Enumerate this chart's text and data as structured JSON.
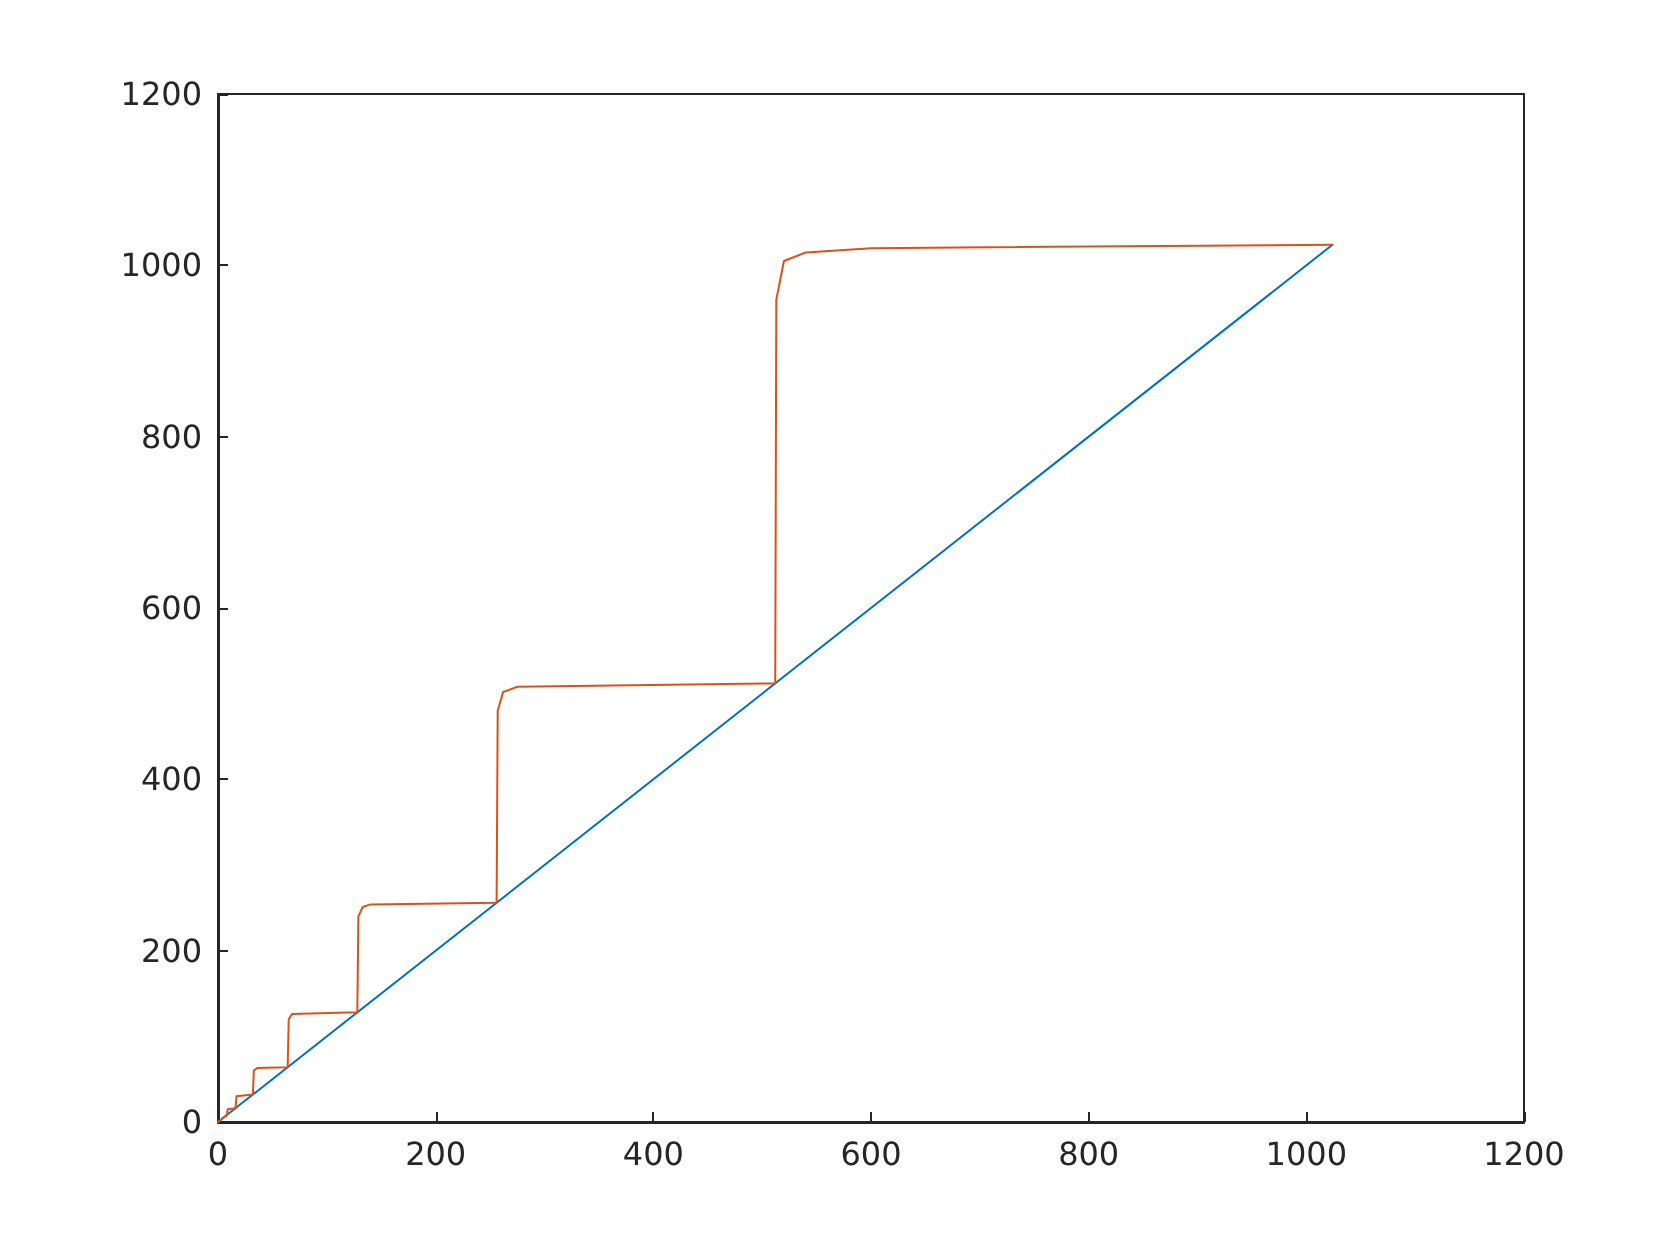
{
  "chart_data": {
    "type": "line",
    "xlim": [
      0,
      1200
    ],
    "ylim": [
      0,
      1200
    ],
    "xticks": [
      0,
      200,
      400,
      600,
      800,
      1000,
      1200
    ],
    "yticks": [
      0,
      200,
      400,
      600,
      800,
      1000,
      1200
    ],
    "grid": false,
    "marker": "none",
    "line_style": "solid",
    "series": [
      {
        "color": "#0072bd",
        "x": [
          0,
          1024
        ],
        "values": [
          0,
          1024
        ]
      },
      {
        "color": "#d95319",
        "x": [
          0,
          8,
          9,
          16,
          17,
          32,
          33,
          36,
          64,
          65,
          68,
          128,
          129,
          133,
          140,
          256,
          257,
          262,
          275,
          512,
          513,
          520,
          540,
          600,
          1024
        ],
        "values": [
          0,
          8,
          15,
          16,
          30,
          32,
          60,
          63,
          64,
          120,
          126,
          128,
          240,
          251,
          254,
          256,
          480,
          502,
          508,
          512,
          960,
          1005,
          1015,
          1020,
          1024
        ]
      }
    ]
  }
}
